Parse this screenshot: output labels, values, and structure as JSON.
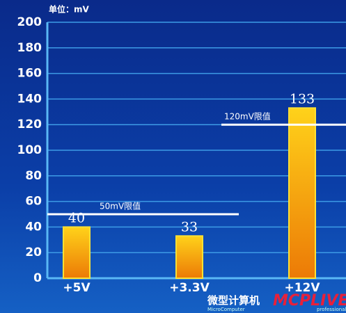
{
  "chart_data": {
    "type": "bar",
    "unit_label": "单位：mV",
    "categories": [
      "+5V",
      "+3.3V",
      "+12V"
    ],
    "values": [
      40,
      33,
      133
    ],
    "ylim": [
      0,
      200
    ],
    "yticks": [
      0,
      20,
      40,
      60,
      80,
      100,
      120,
      140,
      160,
      180,
      200
    ],
    "grid": true,
    "reference_lines": [
      {
        "value": 50,
        "label": "50mV限值"
      },
      {
        "value": 120,
        "label": "120mV限值"
      }
    ],
    "watermark": {
      "cn": "微型计算机",
      "logo": "MCPLIVE",
      "sub": "MicroComputer",
      "sub2": "professional"
    }
  }
}
